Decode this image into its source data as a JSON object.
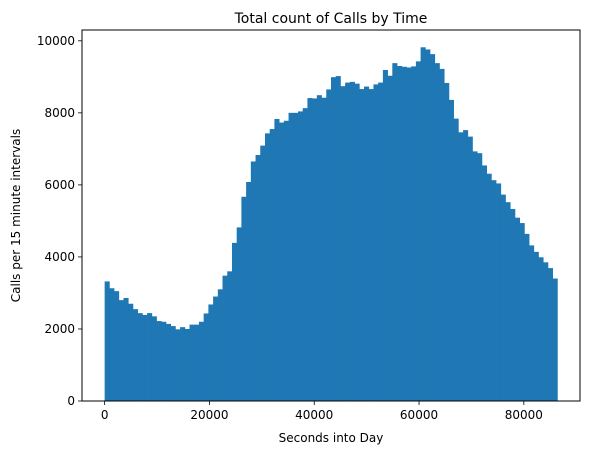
{
  "chart_data": {
    "type": "bar",
    "title": "Total count of Calls by Time",
    "xlabel": "Seconds into Day",
    "ylabel": "Calls per 15 minute intervals",
    "bin_width": 900,
    "bar_color": "#1f77b4",
    "xlim": [
      -4320,
      90720
    ],
    "ylim": [
      0,
      10300
    ],
    "xticks": [
      0,
      20000,
      40000,
      60000,
      80000
    ],
    "xtick_labels": [
      "0",
      "20000",
      "40000",
      "60000",
      "80000"
    ],
    "yticks": [
      0,
      2000,
      4000,
      6000,
      8000,
      10000
    ],
    "ytick_labels": [
      "0",
      "2000",
      "4000",
      "6000",
      "8000",
      "10000"
    ],
    "grid": false,
    "x": [
      0,
      900,
      1800,
      2700,
      3600,
      4500,
      5400,
      6300,
      7200,
      8100,
      9000,
      9900,
      10800,
      11700,
      12600,
      13500,
      14400,
      15300,
      16200,
      17100,
      18000,
      18900,
      19800,
      20700,
      21600,
      22500,
      23400,
      24300,
      25200,
      26100,
      27000,
      27900,
      28800,
      29700,
      30600,
      31500,
      32400,
      33300,
      34200,
      35100,
      36000,
      36900,
      37800,
      38700,
      39600,
      40500,
      41400,
      42300,
      43200,
      44100,
      45000,
      45900,
      46800,
      47700,
      48600,
      49500,
      50400,
      51300,
      52200,
      53100,
      54000,
      54900,
      55800,
      56700,
      57600,
      58500,
      59400,
      60300,
      61200,
      62100,
      63000,
      63900,
      64800,
      65700,
      66600,
      67500,
      68400,
      69300,
      70200,
      71100,
      72000,
      72900,
      73800,
      74700,
      75600,
      76500,
      77400,
      78300,
      79200,
      80100,
      81000,
      81900,
      82800,
      83700,
      84600,
      85500
    ],
    "values": [
      3320,
      3130,
      3050,
      2800,
      2860,
      2700,
      2550,
      2440,
      2390,
      2440,
      2350,
      2220,
      2200,
      2140,
      2080,
      1990,
      2050,
      2000,
      2120,
      2120,
      2200,
      2430,
      2680,
      2900,
      3100,
      3480,
      3600,
      4390,
      4820,
      5670,
      6080,
      6650,
      6830,
      7090,
      7430,
      7550,
      7830,
      7730,
      7780,
      8000,
      8000,
      8040,
      8130,
      8410,
      8400,
      8490,
      8420,
      8650,
      8990,
      9020,
      8740,
      8840,
      8860,
      8810,
      8660,
      8730,
      8660,
      8790,
      8840,
      9190,
      9030,
      9380,
      9300,
      9280,
      9260,
      9290,
      9430,
      9820,
      9760,
      9630,
      9380,
      9220,
      8830,
      8360,
      7840,
      7460,
      7520,
      7340,
      6930,
      6880,
      6540,
      6310,
      6130,
      6040,
      5730,
      5520,
      5330,
      5090,
      4940,
      4640,
      4320,
      4140,
      3990,
      3850,
      3690,
      3400
    ]
  }
}
